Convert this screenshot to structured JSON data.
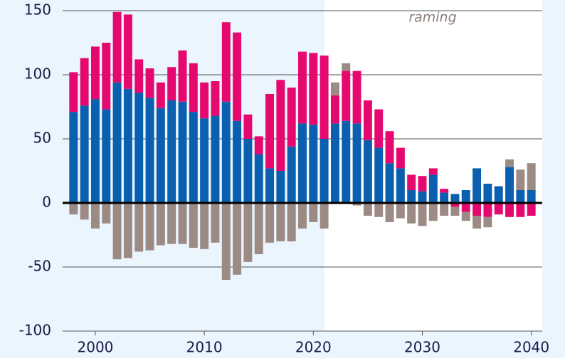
{
  "chart_data": {
    "type": "stacked_bar",
    "annotation": "raming",
    "forecast_start": 2021,
    "x": [
      1998,
      1999,
      2000,
      2001,
      2002,
      2003,
      2004,
      2005,
      2006,
      2007,
      2008,
      2009,
      2010,
      2011,
      2012,
      2013,
      2014,
      2015,
      2016,
      2017,
      2018,
      2019,
      2020,
      2021,
      2022,
      2023,
      2024,
      2025,
      2026,
      2027,
      2028,
      2029,
      2030,
      2031,
      2032,
      2033,
      2034,
      2035,
      2036,
      2037,
      2038,
      2039,
      2040
    ],
    "series": [
      {
        "color": "#0a5fae",
        "values": [
          71,
          76,
          81,
          73,
          94,
          89,
          86,
          82,
          74,
          80,
          79,
          71,
          66,
          68,
          79,
          64,
          50,
          38,
          27,
          25,
          44,
          62,
          61,
          50,
          62,
          64,
          62,
          49,
          43,
          31,
          27,
          10,
          9,
          22,
          8,
          7,
          10,
          27,
          15,
          13,
          28,
          10,
          10
        ]
      },
      {
        "color": "#e5096f",
        "values": [
          31,
          37,
          41,
          52,
          55,
          58,
          26,
          23,
          20,
          26,
          40,
          38,
          28,
          27,
          62,
          69,
          19,
          14,
          58,
          71,
          46,
          56,
          56,
          65,
          22,
          39,
          41,
          31,
          30,
          25,
          16,
          12,
          12,
          5,
          3,
          -3,
          -7,
          -10,
          -11,
          -9,
          -11,
          -11,
          -10
        ]
      },
      {
        "color": "#9c8a84",
        "values": [
          -9,
          -13,
          -20,
          -16,
          -44,
          -43,
          -38,
          -37,
          -33,
          -32,
          -32,
          -35,
          -36,
          -31,
          -60,
          -56,
          -46,
          -40,
          -31,
          -30,
          -30,
          -20,
          -15,
          -20,
          10,
          6,
          -2,
          -10,
          -11,
          -15,
          -12,
          -16,
          -18,
          -14,
          -10,
          -7,
          -7,
          -10,
          -8,
          0,
          6,
          16,
          21
        ]
      }
    ],
    "xlim": [
      1997,
      2041
    ],
    "xticks": [
      2000,
      2010,
      2020,
      2030,
      2040
    ],
    "ylim": [
      -100,
      150
    ],
    "yticks": [
      -100,
      -50,
      0,
      50,
      100,
      150
    ],
    "grid": true
  }
}
